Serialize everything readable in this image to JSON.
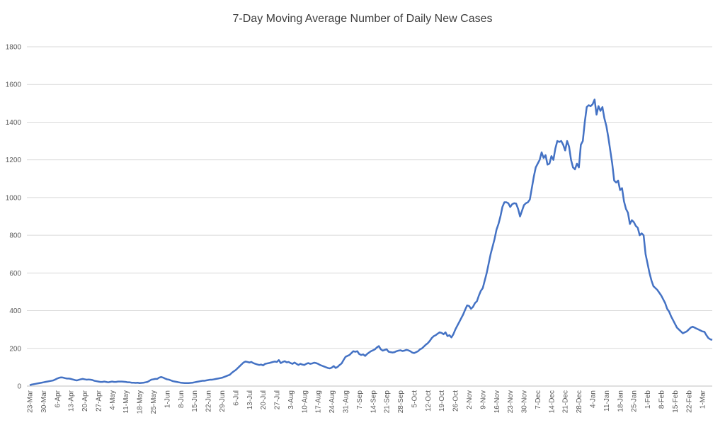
{
  "chart_data": {
    "type": "line",
    "title": "7-Day Moving Average Number of Daily New Cases",
    "categories": [
      "23-Mar",
      null,
      null,
      null,
      null,
      null,
      null,
      "30-Mar",
      null,
      null,
      null,
      null,
      null,
      null,
      "6-Apr",
      null,
      null,
      null,
      null,
      null,
      null,
      "13-Apr",
      null,
      null,
      null,
      null,
      null,
      null,
      "20-Apr",
      null,
      null,
      null,
      null,
      null,
      null,
      "27-Apr",
      null,
      null,
      null,
      null,
      null,
      null,
      "4-May",
      null,
      null,
      null,
      null,
      null,
      null,
      "11-May",
      null,
      null,
      null,
      null,
      null,
      null,
      "18-May",
      null,
      null,
      null,
      null,
      null,
      null,
      "25-May",
      null,
      null,
      null,
      null,
      null,
      null,
      "1-Jun",
      null,
      null,
      null,
      null,
      null,
      null,
      "8-Jun",
      null,
      null,
      null,
      null,
      null,
      null,
      "15-Jun",
      null,
      null,
      null,
      null,
      null,
      null,
      "22-Jun",
      null,
      null,
      null,
      null,
      null,
      null,
      "29-Jun",
      null,
      null,
      null,
      null,
      null,
      null,
      "6-Jul",
      null,
      null,
      null,
      null,
      null,
      null,
      "13-Jul",
      null,
      null,
      null,
      null,
      null,
      null,
      "20-Jul",
      null,
      null,
      null,
      null,
      null,
      null,
      "27-Jul",
      null,
      null,
      null,
      null,
      null,
      null,
      "3-Aug",
      null,
      null,
      null,
      null,
      null,
      null,
      "10-Aug",
      null,
      null,
      null,
      null,
      null,
      null,
      "17-Aug",
      null,
      null,
      null,
      null,
      null,
      null,
      "24-Aug",
      null,
      null,
      null,
      null,
      null,
      null,
      "31-Aug",
      null,
      null,
      null,
      null,
      null,
      null,
      "7-Sep",
      null,
      null,
      null,
      null,
      null,
      null,
      "14-Sep",
      null,
      null,
      null,
      null,
      null,
      null,
      "21-Sep",
      null,
      null,
      null,
      null,
      null,
      null,
      "28-Sep",
      null,
      null,
      null,
      null,
      null,
      null,
      "5-Oct",
      null,
      null,
      null,
      null,
      null,
      null,
      "12-Oct",
      null,
      null,
      null,
      null,
      null,
      null,
      "19-Oct",
      null,
      null,
      null,
      null,
      null,
      null,
      "26-Oct",
      null,
      null,
      null,
      null,
      null,
      null,
      "2-Nov",
      null,
      null,
      null,
      null,
      null,
      null,
      "9-Nov",
      null,
      null,
      null,
      null,
      null,
      null,
      "16-Nov",
      null,
      null,
      null,
      null,
      null,
      null,
      "23-Nov",
      null,
      null,
      null,
      null,
      null,
      null,
      "30-Nov",
      null,
      null,
      null,
      null,
      null,
      null,
      "7-Dec",
      null,
      null,
      null,
      null,
      null,
      null,
      "14-Dec",
      null,
      null,
      null,
      null,
      null,
      null,
      "21-Dec",
      null,
      null,
      null,
      null,
      null,
      null,
      "28-Dec",
      null,
      null,
      null,
      null,
      null,
      null,
      "4-Jan",
      null,
      null,
      null,
      null,
      null,
      null,
      "11-Jan",
      null,
      null,
      null,
      null,
      null,
      null,
      "18-Jan",
      null,
      null,
      null,
      null,
      null,
      null,
      "25-Jan",
      null,
      null,
      null,
      null,
      null,
      null,
      "1-Feb",
      null,
      null,
      null,
      null,
      null,
      null,
      "8-Feb",
      null,
      null,
      null,
      null,
      null,
      null,
      "15-Feb",
      null,
      null,
      null,
      null,
      null,
      null,
      "22-Feb",
      null,
      null,
      null,
      null,
      null,
      null,
      "1-Mar",
      null,
      null,
      null,
      null,
      null
    ],
    "series": [
      {
        "name": "7-Day Moving Average",
        "color": "#4472c4",
        "values": [
          5,
          8,
          10,
          12,
          14,
          16,
          18,
          20,
          22,
          24,
          26,
          28,
          30,
          35,
          40,
          44,
          46,
          45,
          42,
          40,
          40,
          38,
          35,
          32,
          30,
          33,
          36,
          38,
          36,
          34,
          35,
          34,
          32,
          28,
          26,
          24,
          22,
          22,
          24,
          22,
          20,
          22,
          24,
          22,
          22,
          24,
          24,
          24,
          23,
          22,
          20,
          20,
          18,
          18,
          17,
          18,
          16,
          17,
          18,
          20,
          22,
          28,
          34,
          36,
          38,
          38,
          45,
          48,
          45,
          40,
          36,
          34,
          30,
          26,
          24,
          22,
          20,
          18,
          17,
          16,
          16,
          16,
          17,
          18,
          20,
          22,
          24,
          26,
          28,
          28,
          30,
          32,
          34,
          34,
          36,
          38,
          40,
          42,
          44,
          48,
          52,
          56,
          60,
          70,
          78,
          85,
          95,
          105,
          115,
          125,
          130,
          128,
          125,
          128,
          122,
          118,
          115,
          112,
          114,
          110,
          118,
          120,
          122,
          125,
          128,
          130,
          128,
          138,
          122,
          128,
          132,
          126,
          128,
          122,
          118,
          125,
          118,
          112,
          118,
          114,
          112,
          118,
          122,
          118,
          120,
          124,
          122,
          118,
          112,
          108,
          104,
          100,
          96,
          94,
          98,
          106,
          96,
          102,
          112,
          120,
          138,
          155,
          160,
          165,
          175,
          185,
          182,
          185,
          170,
          165,
          168,
          160,
          170,
          178,
          185,
          190,
          195,
          205,
          212,
          195,
          188,
          192,
          195,
          182,
          180,
          178,
          180,
          185,
          188,
          190,
          186,
          188,
          192,
          190,
          185,
          178,
          175,
          180,
          185,
          195,
          200,
          210,
          220,
          228,
          240,
          255,
          265,
          270,
          278,
          285,
          282,
          275,
          285,
          265,
          270,
          258,
          275,
          300,
          320,
          340,
          360,
          380,
          405,
          428,
          425,
          410,
          420,
          440,
          450,
          480,
          505,
          520,
          560,
          600,
          650,
          700,
          740,
          780,
          830,
          860,
          900,
          950,
          975,
          975,
          970,
          950,
          965,
          970,
          968,
          940,
          900,
          930,
          960,
          970,
          975,
          990,
          1050,
          1110,
          1160,
          1180,
          1200,
          1240,
          1210,
          1225,
          1175,
          1180,
          1220,
          1200,
          1260,
          1300,
          1295,
          1300,
          1280,
          1250,
          1300,
          1270,
          1200,
          1160,
          1150,
          1180,
          1160,
          1280,
          1300,
          1400,
          1480,
          1490,
          1485,
          1495,
          1520,
          1440,
          1485,
          1460,
          1480,
          1420,
          1380,
          1320,
          1250,
          1180,
          1090,
          1080,
          1090,
          1040,
          1050,
          980,
          940,
          920,
          860,
          880,
          870,
          850,
          840,
          800,
          810,
          800,
          700,
          650,
          600,
          560,
          530,
          520,
          510,
          495,
          480,
          460,
          440,
          410,
          395,
          370,
          350,
          330,
          310,
          300,
          290,
          280,
          285,
          290,
          300,
          310,
          315,
          310,
          305,
          300,
          295,
          290,
          288,
          270,
          255,
          248,
          245
        ]
      }
    ],
    "ylim": [
      0,
      1800
    ],
    "yticks": [
      0,
      200,
      400,
      600,
      800,
      1000,
      1200,
      1400,
      1600,
      1800
    ],
    "grid": true
  }
}
